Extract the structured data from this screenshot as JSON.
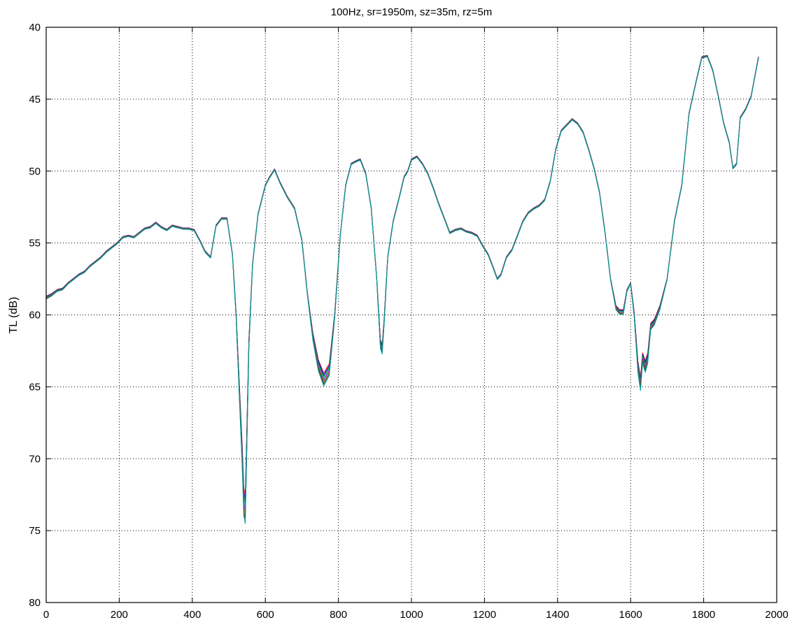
{
  "chart_data": {
    "type": "line",
    "title": "100Hz, sr=1950m, sz=35m, rz=5m",
    "xlabel": "",
    "ylabel": "TL (dB)",
    "xlim": [
      0,
      2000
    ],
    "ylim": [
      40,
      80
    ],
    "y_reversed": true,
    "grid": true,
    "grid_style": "dotted",
    "x_ticks": [
      0,
      200,
      400,
      600,
      800,
      1000,
      1200,
      1400,
      1600,
      1800,
      2000
    ],
    "y_ticks": [
      40,
      45,
      50,
      55,
      60,
      65,
      70,
      75,
      80
    ],
    "series_colors": [
      "#ff0000",
      "#0000ff",
      "#008000",
      "#00bfbf",
      "#bf00bf",
      "#7f7f00",
      "#333333",
      "#00a0a0"
    ],
    "series_count": 8,
    "x": [
      0,
      15,
      30,
      45,
      60,
      75,
      90,
      105,
      120,
      135,
      150,
      165,
      180,
      195,
      210,
      225,
      240,
      255,
      270,
      285,
      300,
      315,
      330,
      345,
      360,
      375,
      390,
      405,
      420,
      435,
      450,
      465,
      480,
      495,
      510,
      520,
      530,
      537,
      541,
      545,
      549,
      555,
      565,
      580,
      600,
      610,
      625,
      640,
      660,
      680,
      700,
      715,
      730,
      745,
      760,
      775,
      790,
      805,
      820,
      835,
      850,
      860,
      875,
      890,
      905,
      915,
      920,
      925,
      935,
      950,
      965,
      980,
      990,
      1000,
      1015,
      1030,
      1045,
      1060,
      1075,
      1090,
      1105,
      1120,
      1135,
      1150,
      1165,
      1180,
      1195,
      1210,
      1225,
      1235,
      1245,
      1260,
      1275,
      1290,
      1305,
      1320,
      1335,
      1350,
      1365,
      1380,
      1395,
      1410,
      1425,
      1440,
      1455,
      1470,
      1485,
      1500,
      1515,
      1530,
      1545,
      1560,
      1570,
      1580,
      1590,
      1600,
      1610,
      1620,
      1627,
      1633,
      1640,
      1647,
      1655,
      1665,
      1680,
      1700,
      1720,
      1740,
      1760,
      1780,
      1795,
      1810,
      1825,
      1840,
      1855,
      1870,
      1880,
      1890,
      1900,
      1915,
      1930,
      1950
    ],
    "y": [
      58.8,
      58.6,
      58.3,
      58.2,
      57.8,
      57.5,
      57.2,
      57.0,
      56.6,
      56.3,
      56.0,
      55.6,
      55.3,
      55.0,
      54.6,
      54.5,
      54.6,
      54.3,
      54.0,
      53.9,
      53.6,
      53.9,
      54.1,
      53.8,
      53.9,
      54.0,
      54.0,
      54.1,
      54.8,
      55.6,
      56.0,
      53.8,
      53.3,
      53.3,
      55.8,
      60.0,
      66.0,
      70.0,
      73.0,
      73.5,
      69.0,
      62.0,
      56.5,
      53.0,
      51.0,
      50.5,
      49.9,
      50.8,
      51.8,
      52.6,
      54.8,
      58.5,
      61.5,
      63.5,
      64.5,
      63.8,
      60.0,
      54.5,
      51.0,
      49.5,
      49.3,
      49.2,
      50.2,
      52.6,
      57.5,
      62.0,
      62.4,
      60.5,
      56.0,
      53.5,
      52.0,
      50.4,
      50.0,
      49.2,
      49.0,
      49.5,
      50.2,
      51.2,
      52.3,
      53.3,
      54.3,
      54.1,
      54.0,
      54.2,
      54.3,
      54.5,
      55.2,
      55.8,
      56.8,
      57.5,
      57.2,
      56.0,
      55.5,
      54.5,
      53.5,
      52.9,
      52.6,
      52.4,
      52.0,
      50.7,
      48.5,
      47.2,
      46.8,
      46.4,
      46.7,
      47.3,
      48.5,
      49.8,
      51.5,
      54.3,
      57.5,
      59.5,
      59.8,
      59.8,
      58.3,
      57.8,
      60.0,
      63.6,
      64.8,
      63.0,
      63.6,
      63.0,
      60.8,
      60.5,
      59.5,
      57.5,
      53.5,
      51.0,
      46.0,
      43.7,
      42.1,
      42.0,
      43.0,
      44.8,
      46.7,
      48.0,
      49.8,
      49.5,
      46.3,
      45.7,
      44.8,
      42.1
    ]
  }
}
